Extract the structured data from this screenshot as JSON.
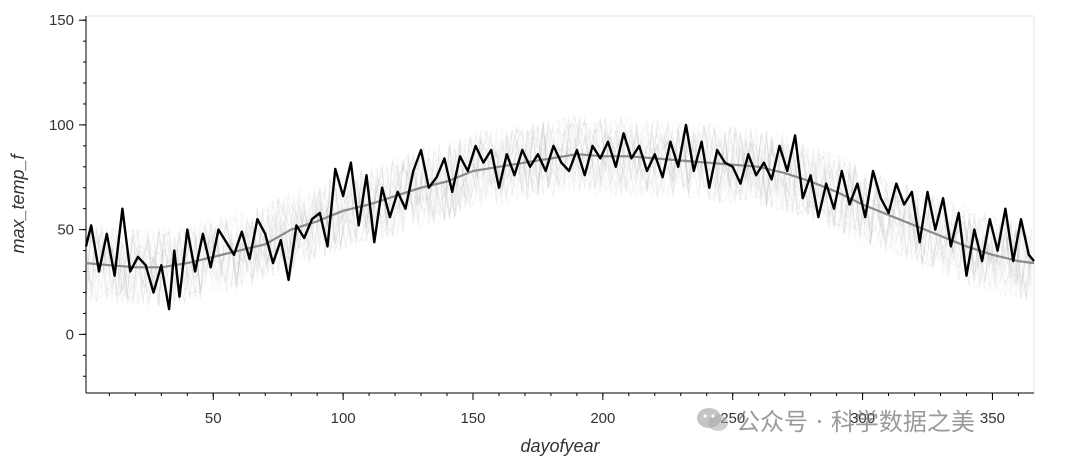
{
  "chart_data": {
    "type": "line",
    "title": "",
    "xlabel": "dayofyear",
    "ylabel": "max_temp_f",
    "xlim": [
      1,
      366
    ],
    "ylim": [
      -28,
      152
    ],
    "xticks": [
      50,
      100,
      150,
      200,
      250,
      300,
      350
    ],
    "yticks": [
      0,
      50,
      100,
      150
    ],
    "grid": false,
    "series": [
      {
        "role": "climatology",
        "color": "#8a8a8a",
        "x": [
          1,
          10,
          20,
          30,
          40,
          50,
          60,
          70,
          80,
          90,
          100,
          110,
          120,
          130,
          140,
          150,
          160,
          170,
          180,
          190,
          200,
          210,
          220,
          230,
          240,
          250,
          260,
          270,
          280,
          290,
          300,
          310,
          320,
          330,
          340,
          350,
          360,
          366
        ],
        "y": [
          34,
          33,
          32,
          32,
          34,
          37,
          40,
          43,
          50,
          54,
          59,
          62,
          66,
          70,
          73,
          78,
          80,
          82,
          84,
          86,
          85,
          85,
          84,
          83,
          82,
          81,
          80,
          77,
          73,
          68,
          62,
          57,
          52,
          47,
          42,
          38,
          35,
          34
        ]
      },
      {
        "role": "highlighted-year",
        "color": "#000000",
        "x": [
          1,
          3,
          6,
          9,
          12,
          15,
          18,
          21,
          24,
          27,
          30,
          33,
          35,
          37,
          40,
          43,
          46,
          49,
          52,
          55,
          58,
          61,
          64,
          67,
          70,
          73,
          76,
          79,
          82,
          85,
          88,
          91,
          94,
          97,
          100,
          103,
          106,
          109,
          112,
          115,
          118,
          121,
          124,
          127,
          130,
          133,
          136,
          139,
          142,
          145,
          148,
          151,
          154,
          157,
          160,
          163,
          166,
          169,
          172,
          175,
          178,
          181,
          184,
          187,
          190,
          193,
          196,
          199,
          202,
          205,
          208,
          211,
          214,
          217,
          220,
          223,
          226,
          229,
          232,
          235,
          238,
          241,
          244,
          247,
          250,
          253,
          256,
          259,
          262,
          265,
          268,
          271,
          274,
          277,
          280,
          283,
          286,
          289,
          292,
          295,
          298,
          301,
          304,
          307,
          310,
          313,
          316,
          319,
          322,
          325,
          328,
          331,
          334,
          337,
          340,
          343,
          346,
          349,
          352,
          355,
          358,
          361,
          364,
          366
        ],
        "y": [
          42,
          52,
          30,
          48,
          28,
          60,
          30,
          37,
          33,
          20,
          33,
          12,
          40,
          18,
          50,
          30,
          48,
          32,
          50,
          44,
          38,
          49,
          36,
          55,
          48,
          34,
          45,
          26,
          52,
          46,
          55,
          58,
          42,
          79,
          66,
          82,
          52,
          76,
          44,
          70,
          56,
          68,
          60,
          78,
          88,
          70,
          75,
          84,
          68,
          85,
          78,
          90,
          82,
          88,
          70,
          86,
          76,
          88,
          80,
          86,
          78,
          90,
          82,
          78,
          88,
          76,
          90,
          84,
          92,
          80,
          96,
          84,
          90,
          78,
          86,
          75,
          92,
          80,
          100,
          78,
          92,
          70,
          88,
          82,
          80,
          72,
          86,
          76,
          82,
          74,
          90,
          78,
          95,
          65,
          76,
          56,
          72,
          60,
          78,
          62,
          72,
          56,
          78,
          65,
          58,
          72,
          62,
          68,
          44,
          68,
          50,
          65,
          42,
          58,
          28,
          50,
          35,
          55,
          40,
          60,
          35,
          55,
          38,
          35
        ]
      }
    ]
  },
  "watermark": {
    "icon": "wechat-icon",
    "text": "公众号 · 科学数据之美"
  }
}
